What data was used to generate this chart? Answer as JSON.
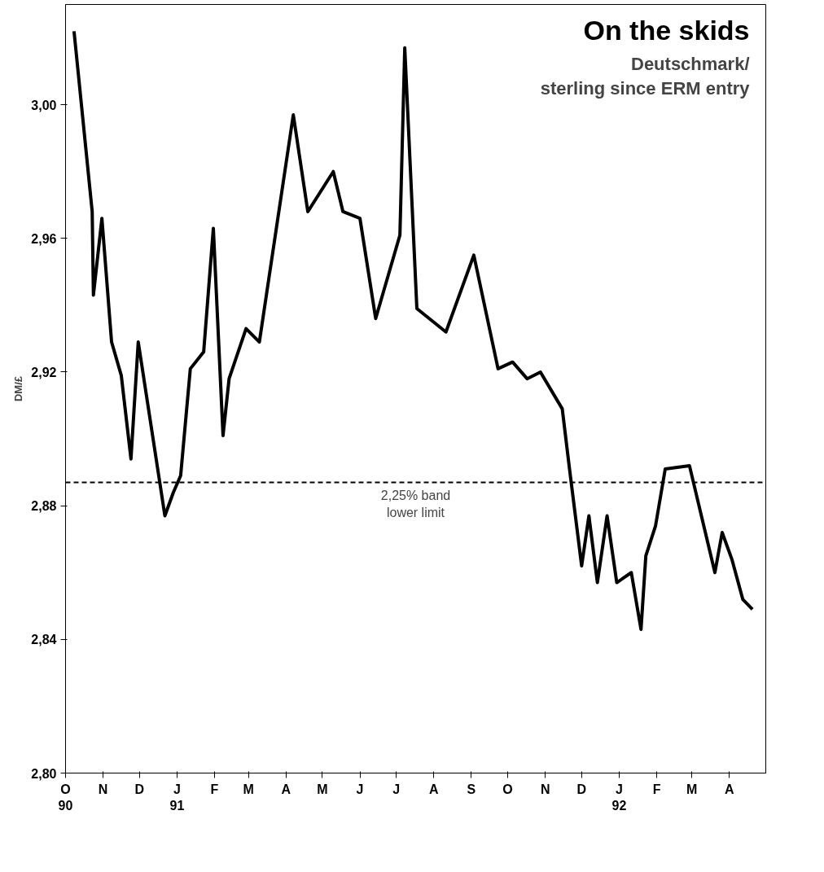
{
  "chart_data": {
    "type": "line",
    "title": "On the skids",
    "subtitle": "Deutschmark/ sterling since ERM entry",
    "ylabel": "DM/£",
    "x": [
      "1990-10-08",
      "1990-10-23",
      "1990-10-24",
      "1990-10-31",
      "1990-11-08",
      "1990-11-16",
      "1990-11-24",
      "1990-11-30",
      "1990-12-22",
      "1990-12-29",
      "1991-01-04",
      "1991-01-12",
      "1991-01-23",
      "1991-01-31",
      "1991-02-08",
      "1991-02-13",
      "1991-02-27",
      "1991-03-10",
      "1991-04-07",
      "1991-04-19",
      "1991-05-10",
      "1991-05-18",
      "1991-06-01",
      "1991-06-14",
      "1991-07-04",
      "1991-07-08",
      "1991-07-18",
      "1991-08-11",
      "1991-09-03",
      "1991-09-23",
      "1991-10-05",
      "1991-10-17",
      "1991-10-28",
      "1991-11-15",
      "1991-11-21",
      "1991-12-01",
      "1991-12-07",
      "1991-12-14",
      "1991-12-22",
      "1991-12-30",
      "1992-01-11",
      "1992-01-19",
      "1992-01-23",
      "1992-01-31",
      "1992-02-08",
      "1992-02-28",
      "1992-03-20",
      "1992-03-26",
      "1992-04-03",
      "1992-04-12",
      "1992-04-20"
    ],
    "series": [
      {
        "color": "#000000",
        "values": [
          3.022,
          2.968,
          2.943,
          2.966,
          2.929,
          2.919,
          2.894,
          2.929,
          2.877,
          2.884,
          2.889,
          2.921,
          2.926,
          2.963,
          2.901,
          2.918,
          2.933,
          2.929,
          2.997,
          2.968,
          2.98,
          2.968,
          2.966,
          2.936,
          2.961,
          3.017,
          2.939,
          2.932,
          2.955,
          2.921,
          2.923,
          2.918,
          2.92,
          2.909,
          2.891,
          2.862,
          2.877,
          2.857,
          2.877,
          2.857,
          2.86,
          2.843,
          2.865,
          2.874,
          2.891,
          2.892,
          2.86,
          2.872,
          2.864,
          2.852,
          2.849
        ]
      }
    ],
    "xlim": [
      "1990-10-01",
      "1992-05-01"
    ],
    "xticks": [
      {
        "value": "1990-10-01",
        "label": "O\n90"
      },
      {
        "value": "1990-11-01",
        "label": "N"
      },
      {
        "value": "1990-12-01",
        "label": "D"
      },
      {
        "value": "1991-01-01",
        "label": "J\n91"
      },
      {
        "value": "1991-02-01",
        "label": "F"
      },
      {
        "value": "1991-03-01",
        "label": "M"
      },
      {
        "value": "1991-04-01",
        "label": "A"
      },
      {
        "value": "1991-05-01",
        "label": "M"
      },
      {
        "value": "1991-06-01",
        "label": "J"
      },
      {
        "value": "1991-07-01",
        "label": "J"
      },
      {
        "value": "1991-08-01",
        "label": "A"
      },
      {
        "value": "1991-09-01",
        "label": "S"
      },
      {
        "value": "1991-10-01",
        "label": "O"
      },
      {
        "value": "1991-11-01",
        "label": "N"
      },
      {
        "value": "1991-12-01",
        "label": "D"
      },
      {
        "value": "1992-01-01",
        "label": "J\n92"
      },
      {
        "value": "1992-02-01",
        "label": "F"
      },
      {
        "value": "1992-03-01",
        "label": "M"
      },
      {
        "value": "1992-04-01",
        "label": "A"
      }
    ],
    "ylim": [
      2.8,
      3.03
    ],
    "yticks": [
      {
        "value": 2.8,
        "label": "2,80"
      },
      {
        "value": 2.84,
        "label": "2,84"
      },
      {
        "value": 2.88,
        "label": "2,88"
      },
      {
        "value": 2.92,
        "label": "2,92"
      },
      {
        "value": 2.96,
        "label": "2,96"
      },
      {
        "value": 3.0,
        "label": "3,00"
      }
    ],
    "ref_lines": [
      {
        "axis": "y",
        "value": 2.887,
        "label": "2,25% band lower limit",
        "line_style": "dashed",
        "color": "#000000"
      }
    ],
    "grid": false,
    "marker": "none",
    "line_style": "solid"
  }
}
